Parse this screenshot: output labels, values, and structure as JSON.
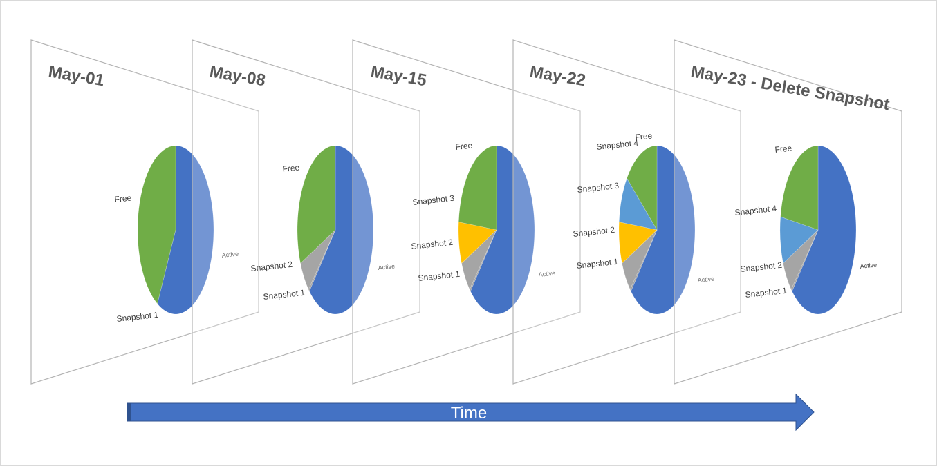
{
  "colors": {
    "active": "#4472C4",
    "snapshot1": "#A5A5A5",
    "snapshot2": "#A5A5A5",
    "snapshot3": "#FFC000",
    "snapshot4": "#5B9BD5",
    "free": "#70AD47",
    "arrow": "#4472C4"
  },
  "timeline": {
    "label": "Time"
  },
  "chart_data": [
    {
      "type": "pie",
      "title": "May-01",
      "slices": [
        {
          "key": "active",
          "label": "Active",
          "value": 58,
          "color": "#4472C4"
        },
        {
          "key": "free",
          "label": "Free",
          "value": 42,
          "color": "#70AD47"
        }
      ],
      "extra_labels": [
        "Snapshot 1"
      ]
    },
    {
      "type": "pie",
      "title": "May-08",
      "slices": [
        {
          "key": "active",
          "label": "Active",
          "value": 62,
          "color": "#4472C4"
        },
        {
          "key": "snapshot1",
          "label": "Snapshot 1",
          "value": 0.5,
          "color": "#A5A5A5"
        },
        {
          "key": "snapshot2",
          "label": "Snapshot 2",
          "value": 6,
          "color": "#A5A5A5"
        },
        {
          "key": "free",
          "label": "Free",
          "value": 31.5,
          "color": "#70AD47"
        }
      ]
    },
    {
      "type": "pie",
      "title": "May-15",
      "slices": [
        {
          "key": "active",
          "label": "Active",
          "value": 62,
          "color": "#4472C4"
        },
        {
          "key": "snapshot1",
          "label": "Snapshot 1",
          "value": 0.5,
          "color": "#A5A5A5"
        },
        {
          "key": "snapshot2",
          "label": "Snapshot 2",
          "value": 6,
          "color": "#A5A5A5"
        },
        {
          "key": "snapshot3",
          "label": "Snapshot 3",
          "value": 8,
          "color": "#FFC000"
        },
        {
          "key": "free",
          "label": "Free",
          "value": 23.5,
          "color": "#70AD47"
        }
      ]
    },
    {
      "type": "pie",
      "title": "May-22",
      "slices": [
        {
          "key": "active",
          "label": "Active",
          "value": 62,
          "color": "#4472C4"
        },
        {
          "key": "snapshot1",
          "label": "Snapshot 1",
          "value": 0.5,
          "color": "#A5A5A5"
        },
        {
          "key": "snapshot2",
          "label": "Snapshot 2",
          "value": 6,
          "color": "#A5A5A5"
        },
        {
          "key": "snapshot3",
          "label": "Snapshot 3",
          "value": 8,
          "color": "#FFC000"
        },
        {
          "key": "snapshot4",
          "label": "Snapshot 4",
          "value": 9,
          "color": "#5B9BD5"
        },
        {
          "key": "free",
          "label": "Free",
          "value": 14.5,
          "color": "#70AD47"
        }
      ]
    },
    {
      "type": "pie",
      "title": "May-23 - Delete Snapshot",
      "slices": [
        {
          "key": "active",
          "label": "Active",
          "value": 62,
          "color": "#4472C4"
        },
        {
          "key": "snapshot1",
          "label": "Snapshot 1",
          "value": 0.5,
          "color": "#A5A5A5"
        },
        {
          "key": "snapshot2",
          "label": "Snapshot 2",
          "value": 6,
          "color": "#A5A5A5"
        },
        {
          "key": "snapshot4",
          "label": "Snapshot 4",
          "value": 9,
          "color": "#5B9BD5"
        },
        {
          "key": "free",
          "label": "Free",
          "value": 22.5,
          "color": "#70AD47"
        }
      ]
    }
  ]
}
